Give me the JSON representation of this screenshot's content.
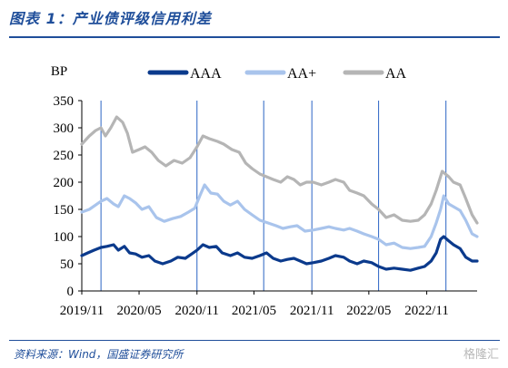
{
  "header": {
    "title": "图表 1：产业债评级信用利差",
    "source": "资料来源：Wind，国盛证券研究所",
    "watermark": "格隆汇"
  },
  "chart_data": {
    "type": "line",
    "title": "",
    "ylabel": "BP",
    "ylim": [
      0,
      350
    ],
    "yticks": [
      0,
      50,
      100,
      150,
      200,
      250,
      300,
      350
    ],
    "xlim": [
      "2019-11-01",
      "2023-04-10"
    ],
    "xticks": [
      {
        "date": "2019-11-01",
        "label": "2019/11"
      },
      {
        "date": "2020-05-01",
        "label": "2020/05"
      },
      {
        "date": "2020-11-01",
        "label": "2020/11"
      },
      {
        "date": "2021-05-01",
        "label": "2021/05"
      },
      {
        "date": "2021-11-01",
        "label": "2021/11"
      },
      {
        "date": "2022-05-01",
        "label": "2022/05"
      },
      {
        "date": "2022-11-01",
        "label": "2022/11"
      }
    ],
    "vertical_lines": [
      "2020-01-01",
      "2020-11-01",
      "2021-06-01",
      "2021-11-01",
      "2022-06-01",
      "2023-01-01"
    ],
    "legend_position": "top",
    "grid": false,
    "series": [
      {
        "name": "AAA",
        "color": "#0b3a8c",
        "width": 3.2,
        "points": [
          [
            "2019-11-01",
            65
          ],
          [
            "2019-11-20",
            70
          ],
          [
            "2019-12-10",
            75
          ],
          [
            "2020-01-01",
            80
          ],
          [
            "2020-01-20",
            82
          ],
          [
            "2020-02-10",
            85
          ],
          [
            "2020-02-25",
            75
          ],
          [
            "2020-03-15",
            82
          ],
          [
            "2020-04-01",
            70
          ],
          [
            "2020-04-20",
            68
          ],
          [
            "2020-05-10",
            62
          ],
          [
            "2020-06-01",
            65
          ],
          [
            "2020-06-20",
            55
          ],
          [
            "2020-07-15",
            50
          ],
          [
            "2020-08-10",
            55
          ],
          [
            "2020-09-01",
            62
          ],
          [
            "2020-09-25",
            60
          ],
          [
            "2020-10-15",
            68
          ],
          [
            "2020-11-01",
            75
          ],
          [
            "2020-11-20",
            85
          ],
          [
            "2020-12-10",
            80
          ],
          [
            "2021-01-01",
            82
          ],
          [
            "2021-01-20",
            70
          ],
          [
            "2021-02-15",
            65
          ],
          [
            "2021-03-10",
            70
          ],
          [
            "2021-04-01",
            62
          ],
          [
            "2021-04-25",
            60
          ],
          [
            "2021-05-20",
            65
          ],
          [
            "2021-06-10",
            70
          ],
          [
            "2021-07-01",
            60
          ],
          [
            "2021-07-25",
            55
          ],
          [
            "2021-08-15",
            58
          ],
          [
            "2021-09-05",
            60
          ],
          [
            "2021-09-25",
            55
          ],
          [
            "2021-10-15",
            50
          ],
          [
            "2021-11-05",
            52
          ],
          [
            "2021-12-01",
            55
          ],
          [
            "2021-12-25",
            60
          ],
          [
            "2022-01-15",
            65
          ],
          [
            "2022-02-10",
            62
          ],
          [
            "2022-03-01",
            55
          ],
          [
            "2022-03-25",
            50
          ],
          [
            "2022-04-15",
            55
          ],
          [
            "2022-05-10",
            52
          ],
          [
            "2022-06-01",
            45
          ],
          [
            "2022-06-25",
            40
          ],
          [
            "2022-07-20",
            42
          ],
          [
            "2022-08-15",
            40
          ],
          [
            "2022-09-10",
            38
          ],
          [
            "2022-10-05",
            42
          ],
          [
            "2022-10-25",
            45
          ],
          [
            "2022-11-15",
            55
          ],
          [
            "2022-12-01",
            70
          ],
          [
            "2022-12-15",
            95
          ],
          [
            "2022-12-25",
            100
          ],
          [
            "2023-01-10",
            92
          ],
          [
            "2023-01-25",
            85
          ],
          [
            "2023-02-15",
            78
          ],
          [
            "2023-03-05",
            62
          ],
          [
            "2023-03-25",
            55
          ],
          [
            "2023-04-10",
            55
          ]
        ]
      },
      {
        "name": "AA+",
        "color": "#a9c4ec",
        "width": 3.2,
        "points": [
          [
            "2019-11-01",
            145
          ],
          [
            "2019-11-25",
            150
          ],
          [
            "2019-12-15",
            158
          ],
          [
            "2020-01-01",
            165
          ],
          [
            "2020-01-20",
            170
          ],
          [
            "2020-02-10",
            160
          ],
          [
            "2020-02-25",
            155
          ],
          [
            "2020-03-15",
            175
          ],
          [
            "2020-04-01",
            170
          ],
          [
            "2020-04-20",
            162
          ],
          [
            "2020-05-10",
            150
          ],
          [
            "2020-06-01",
            155
          ],
          [
            "2020-06-25",
            135
          ],
          [
            "2020-07-20",
            128
          ],
          [
            "2020-08-15",
            133
          ],
          [
            "2020-09-10",
            137
          ],
          [
            "2020-10-05",
            145
          ],
          [
            "2020-10-25",
            152
          ],
          [
            "2020-11-10",
            175
          ],
          [
            "2020-11-25",
            195
          ],
          [
            "2020-12-15",
            180
          ],
          [
            "2021-01-05",
            178
          ],
          [
            "2021-01-25",
            165
          ],
          [
            "2021-02-15",
            158
          ],
          [
            "2021-03-10",
            165
          ],
          [
            "2021-04-01",
            150
          ],
          [
            "2021-04-25",
            140
          ],
          [
            "2021-05-20",
            130
          ],
          [
            "2021-06-15",
            125
          ],
          [
            "2021-07-10",
            120
          ],
          [
            "2021-08-01",
            115
          ],
          [
            "2021-08-25",
            118
          ],
          [
            "2021-09-15",
            120
          ],
          [
            "2021-10-10",
            110
          ],
          [
            "2021-11-05",
            112
          ],
          [
            "2021-12-01",
            115
          ],
          [
            "2021-12-25",
            118
          ],
          [
            "2022-01-15",
            115
          ],
          [
            "2022-02-10",
            112
          ],
          [
            "2022-03-01",
            115
          ],
          [
            "2022-03-25",
            110
          ],
          [
            "2022-04-15",
            105
          ],
          [
            "2022-05-10",
            100
          ],
          [
            "2022-06-01",
            95
          ],
          [
            "2022-06-25",
            85
          ],
          [
            "2022-07-20",
            88
          ],
          [
            "2022-08-15",
            80
          ],
          [
            "2022-09-10",
            78
          ],
          [
            "2022-10-05",
            80
          ],
          [
            "2022-10-25",
            82
          ],
          [
            "2022-11-15",
            100
          ],
          [
            "2022-12-01",
            125
          ],
          [
            "2022-12-15",
            150
          ],
          [
            "2022-12-25",
            175
          ],
          [
            "2023-01-10",
            160
          ],
          [
            "2023-01-25",
            155
          ],
          [
            "2023-02-15",
            148
          ],
          [
            "2023-03-05",
            130
          ],
          [
            "2023-03-25",
            105
          ],
          [
            "2023-04-10",
            100
          ]
        ]
      },
      {
        "name": "AA",
        "color": "#b5b5b5",
        "width": 3.2,
        "points": [
          [
            "2019-11-01",
            270
          ],
          [
            "2019-11-25",
            285
          ],
          [
            "2019-12-15",
            295
          ],
          [
            "2020-01-01",
            300
          ],
          [
            "2020-01-15",
            285
          ],
          [
            "2020-02-01",
            300
          ],
          [
            "2020-02-20",
            320
          ],
          [
            "2020-03-10",
            310
          ],
          [
            "2020-03-25",
            290
          ],
          [
            "2020-04-10",
            255
          ],
          [
            "2020-05-01",
            260
          ],
          [
            "2020-05-20",
            265
          ],
          [
            "2020-06-10",
            255
          ],
          [
            "2020-07-01",
            240
          ],
          [
            "2020-07-25",
            230
          ],
          [
            "2020-08-20",
            240
          ],
          [
            "2020-09-15",
            235
          ],
          [
            "2020-10-10",
            245
          ],
          [
            "2020-11-01",
            265
          ],
          [
            "2020-11-20",
            285
          ],
          [
            "2020-12-10",
            280
          ],
          [
            "2021-01-05",
            275
          ],
          [
            "2021-01-25",
            270
          ],
          [
            "2021-02-20",
            260
          ],
          [
            "2021-03-15",
            255
          ],
          [
            "2021-04-05",
            235
          ],
          [
            "2021-04-25",
            225
          ],
          [
            "2021-05-20",
            215
          ],
          [
            "2021-06-10",
            210
          ],
          [
            "2021-07-01",
            205
          ],
          [
            "2021-07-25",
            200
          ],
          [
            "2021-08-15",
            210
          ],
          [
            "2021-09-05",
            205
          ],
          [
            "2021-09-25",
            195
          ],
          [
            "2021-10-15",
            200
          ],
          [
            "2021-11-05",
            200
          ],
          [
            "2021-12-01",
            195
          ],
          [
            "2021-12-25",
            200
          ],
          [
            "2022-01-15",
            205
          ],
          [
            "2022-02-10",
            200
          ],
          [
            "2022-03-01",
            185
          ],
          [
            "2022-03-25",
            180
          ],
          [
            "2022-04-15",
            175
          ],
          [
            "2022-05-10",
            160
          ],
          [
            "2022-06-01",
            150
          ],
          [
            "2022-06-25",
            135
          ],
          [
            "2022-07-20",
            140
          ],
          [
            "2022-08-15",
            130
          ],
          [
            "2022-09-10",
            128
          ],
          [
            "2022-10-05",
            130
          ],
          [
            "2022-10-25",
            140
          ],
          [
            "2022-11-15",
            160
          ],
          [
            "2022-12-01",
            185
          ],
          [
            "2022-12-20",
            220
          ],
          [
            "2023-01-10",
            210
          ],
          [
            "2023-01-25",
            200
          ],
          [
            "2023-02-15",
            195
          ],
          [
            "2023-03-05",
            170
          ],
          [
            "2023-03-25",
            140
          ],
          [
            "2023-04-10",
            125
          ]
        ]
      }
    ]
  }
}
